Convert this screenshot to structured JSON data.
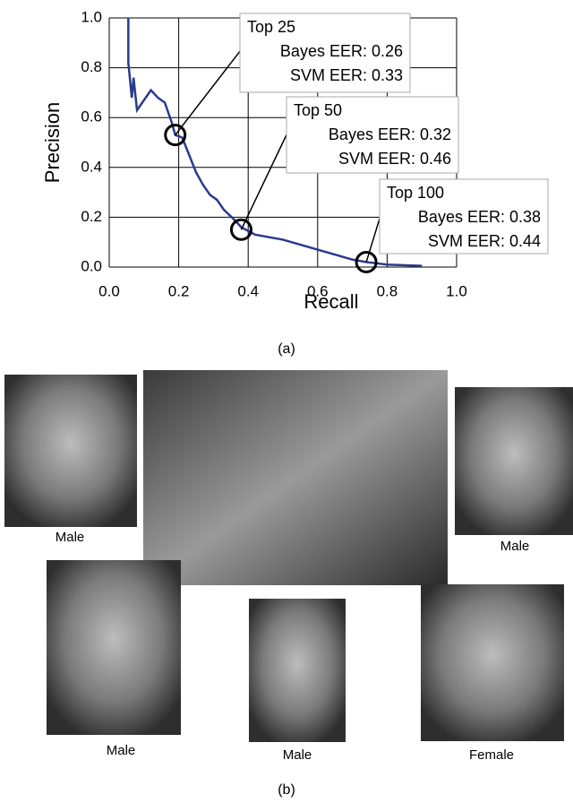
{
  "chart_data": {
    "type": "line",
    "xlabel": "Recall",
    "ylabel": "Precision",
    "x": [
      0.055,
      0.055,
      0.06,
      0.065,
      0.07,
      0.08,
      0.1,
      0.12,
      0.14,
      0.16,
      0.18,
      0.19,
      0.21,
      0.23,
      0.25,
      0.27,
      0.29,
      0.31,
      0.33,
      0.36,
      0.38,
      0.42,
      0.5,
      0.6,
      0.7,
      0.74,
      0.8,
      0.9
    ],
    "series": [
      {
        "color": "#2b3a8f",
        "values": [
          1.0,
          0.82,
          0.75,
          0.68,
          0.76,
          0.63,
          0.67,
          0.71,
          0.68,
          0.66,
          0.58,
          0.53,
          0.52,
          0.45,
          0.38,
          0.33,
          0.29,
          0.27,
          0.23,
          0.19,
          0.16,
          0.13,
          0.11,
          0.07,
          0.03,
          0.02,
          0.01,
          0.005
        ]
      }
    ],
    "xlim": [
      0,
      1
    ],
    "ylim": [
      0,
      1
    ],
    "xticks": [
      {
        "value": 0,
        "label": "0.0"
      },
      0.2,
      0.4,
      0.6,
      0.8,
      {
        "value": 1,
        "label": "1.0"
      }
    ],
    "yticks": [
      {
        "value": 0,
        "label": "0.0"
      },
      0.2,
      0.4,
      0.6,
      0.8,
      {
        "value": 1,
        "label": "1.0"
      }
    ],
    "grid": true,
    "annotations": [
      {
        "x": 0.19,
        "y": 0.53,
        "lines": [
          "Top 25",
          "Bayes EER: 0.26",
          "SVM EER: 0.33"
        ]
      },
      {
        "x": 0.38,
        "y": 0.15,
        "lines": [
          "Top 50",
          "Bayes EER: 0.32",
          "SVM EER: 0.46"
        ]
      },
      {
        "x": 0.74,
        "y": 0.02,
        "lines": [
          "Top 100",
          "Bayes EER: 0.38",
          "SVM EER: 0.44"
        ]
      }
    ]
  },
  "figure": {
    "caption_a": "(a)",
    "caption_b": "(b)",
    "photo_labels": [
      "Male",
      "Male",
      "Male",
      "Male",
      "Female"
    ]
  }
}
